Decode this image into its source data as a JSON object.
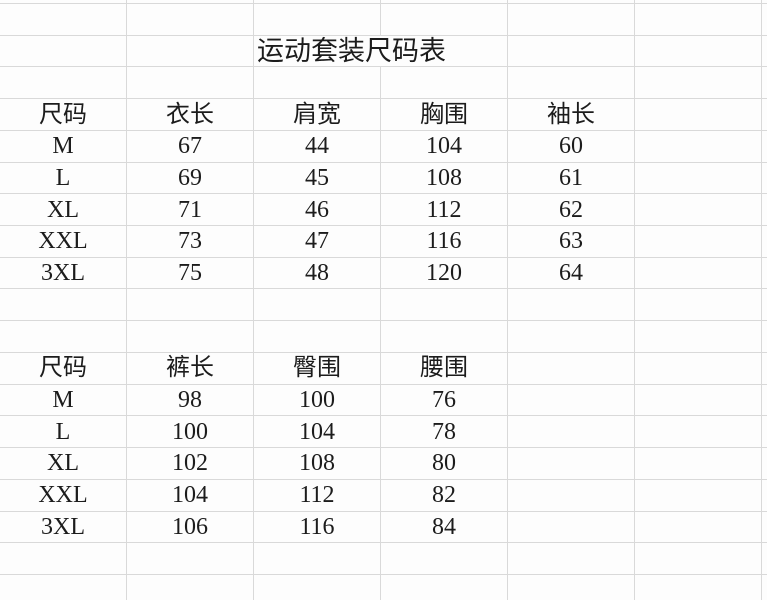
{
  "sheet": {
    "title": "运动套装尺码表",
    "colors": {
      "background": "#fdfdfd",
      "gridline": "#d9d9d9",
      "text": "#1c1c1c",
      "selection_green": "#4a9b4a"
    }
  },
  "top_table": {
    "headers": [
      "尺码",
      "衣长",
      "肩宽",
      "胸围",
      "袖长"
    ],
    "rows": [
      [
        "M",
        "67",
        "44",
        "104",
        "60"
      ],
      [
        "L",
        "69",
        "45",
        "108",
        "61"
      ],
      [
        "XL",
        "71",
        "46",
        "112",
        "62"
      ],
      [
        "XXL",
        "73",
        "47",
        "116",
        "63"
      ],
      [
        "3XL",
        "75",
        "48",
        "120",
        "64"
      ]
    ]
  },
  "bottom_table": {
    "headers": [
      "尺码",
      "裤长",
      "臀围",
      "腰围"
    ],
    "rows": [
      [
        "M",
        "98",
        "100",
        "76"
      ],
      [
        "L",
        "100",
        "104",
        "78"
      ],
      [
        "XL",
        "102",
        "108",
        "80"
      ],
      [
        "XXL",
        "104",
        "112",
        "82"
      ],
      [
        "3XL",
        "106",
        "116",
        "84"
      ]
    ]
  }
}
